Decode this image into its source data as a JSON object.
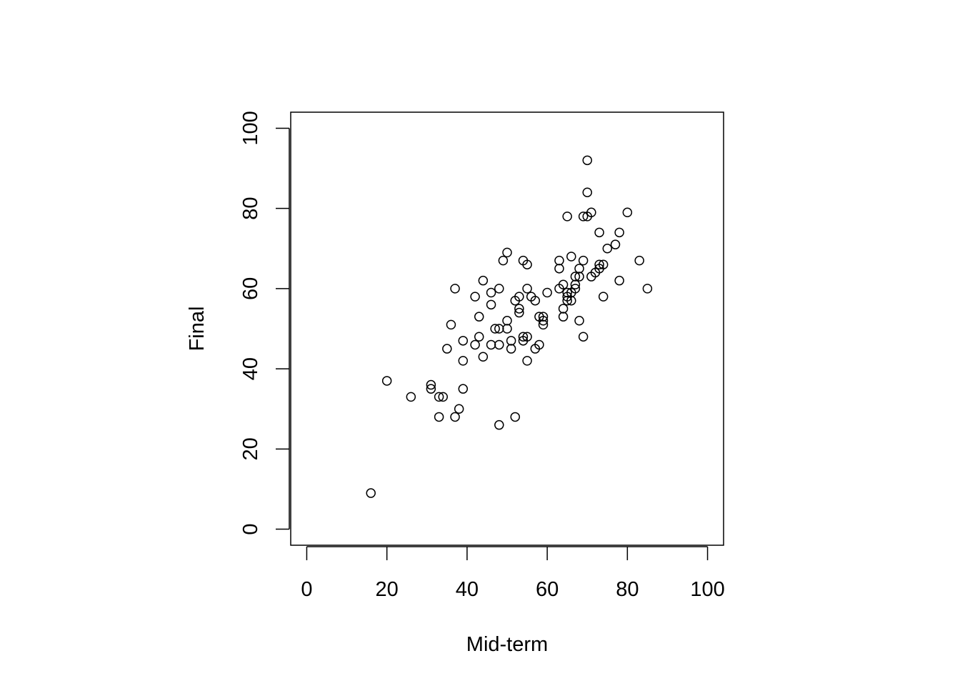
{
  "chart_data": {
    "type": "scatter",
    "title": "",
    "xlabel": "Mid-term",
    "ylabel": "Final",
    "xlim": [
      -4,
      104
    ],
    "ylim": [
      -4,
      104
    ],
    "xticks": [
      "0",
      "20",
      "40",
      "60",
      "80",
      "100"
    ],
    "yticks": [
      "0",
      "20",
      "40",
      "60",
      "80",
      "100"
    ],
    "grid": false,
    "marker": "open-circle",
    "points": [
      [
        16,
        9
      ],
      [
        20,
        37
      ],
      [
        26,
        33
      ],
      [
        31,
        36
      ],
      [
        31,
        35
      ],
      [
        33,
        33
      ],
      [
        34,
        33
      ],
      [
        33,
        28
      ],
      [
        35,
        45
      ],
      [
        36,
        51
      ],
      [
        37,
        60
      ],
      [
        37,
        28
      ],
      [
        38,
        30
      ],
      [
        39,
        47
      ],
      [
        39,
        42
      ],
      [
        39,
        35
      ],
      [
        42,
        58
      ],
      [
        42,
        46
      ],
      [
        43,
        53
      ],
      [
        43,
        48
      ],
      [
        44,
        62
      ],
      [
        44,
        43
      ],
      [
        46,
        59
      ],
      [
        46,
        56
      ],
      [
        46,
        46
      ],
      [
        47,
        50
      ],
      [
        48,
        60
      ],
      [
        48,
        50
      ],
      [
        48,
        46
      ],
      [
        48,
        26
      ],
      [
        49,
        67
      ],
      [
        50,
        69
      ],
      [
        50,
        52
      ],
      [
        50,
        50
      ],
      [
        51,
        47
      ],
      [
        51,
        45
      ],
      [
        52,
        57
      ],
      [
        52,
        28
      ],
      [
        53,
        58
      ],
      [
        53,
        55
      ],
      [
        53,
        54
      ],
      [
        54,
        67
      ],
      [
        54,
        48
      ],
      [
        54,
        47
      ],
      [
        55,
        66
      ],
      [
        55,
        60
      ],
      [
        55,
        48
      ],
      [
        55,
        42
      ],
      [
        56,
        58
      ],
      [
        57,
        57
      ],
      [
        57,
        45
      ],
      [
        58,
        53
      ],
      [
        58,
        46
      ],
      [
        59,
        53
      ],
      [
        59,
        52
      ],
      [
        59,
        51
      ],
      [
        60,
        59
      ],
      [
        63,
        67
      ],
      [
        63,
        65
      ],
      [
        63,
        60
      ],
      [
        64,
        61
      ],
      [
        64,
        55
      ],
      [
        64,
        53
      ],
      [
        65,
        78
      ],
      [
        65,
        59
      ],
      [
        65,
        58
      ],
      [
        65,
        57
      ],
      [
        66,
        68
      ],
      [
        66,
        59
      ],
      [
        66,
        57
      ],
      [
        67,
        63
      ],
      [
        67,
        61
      ],
      [
        67,
        60
      ],
      [
        68,
        65
      ],
      [
        68,
        63
      ],
      [
        68,
        52
      ],
      [
        69,
        78
      ],
      [
        69,
        67
      ],
      [
        69,
        48
      ],
      [
        70,
        92
      ],
      [
        70,
        84
      ],
      [
        70,
        78
      ],
      [
        71,
        79
      ],
      [
        71,
        63
      ],
      [
        72,
        64
      ],
      [
        73,
        74
      ],
      [
        73,
        66
      ],
      [
        73,
        65
      ],
      [
        74,
        66
      ],
      [
        74,
        58
      ],
      [
        75,
        70
      ],
      [
        77,
        71
      ],
      [
        78,
        74
      ],
      [
        78,
        62
      ],
      [
        80,
        79
      ],
      [
        83,
        67
      ],
      [
        85,
        60
      ]
    ]
  }
}
